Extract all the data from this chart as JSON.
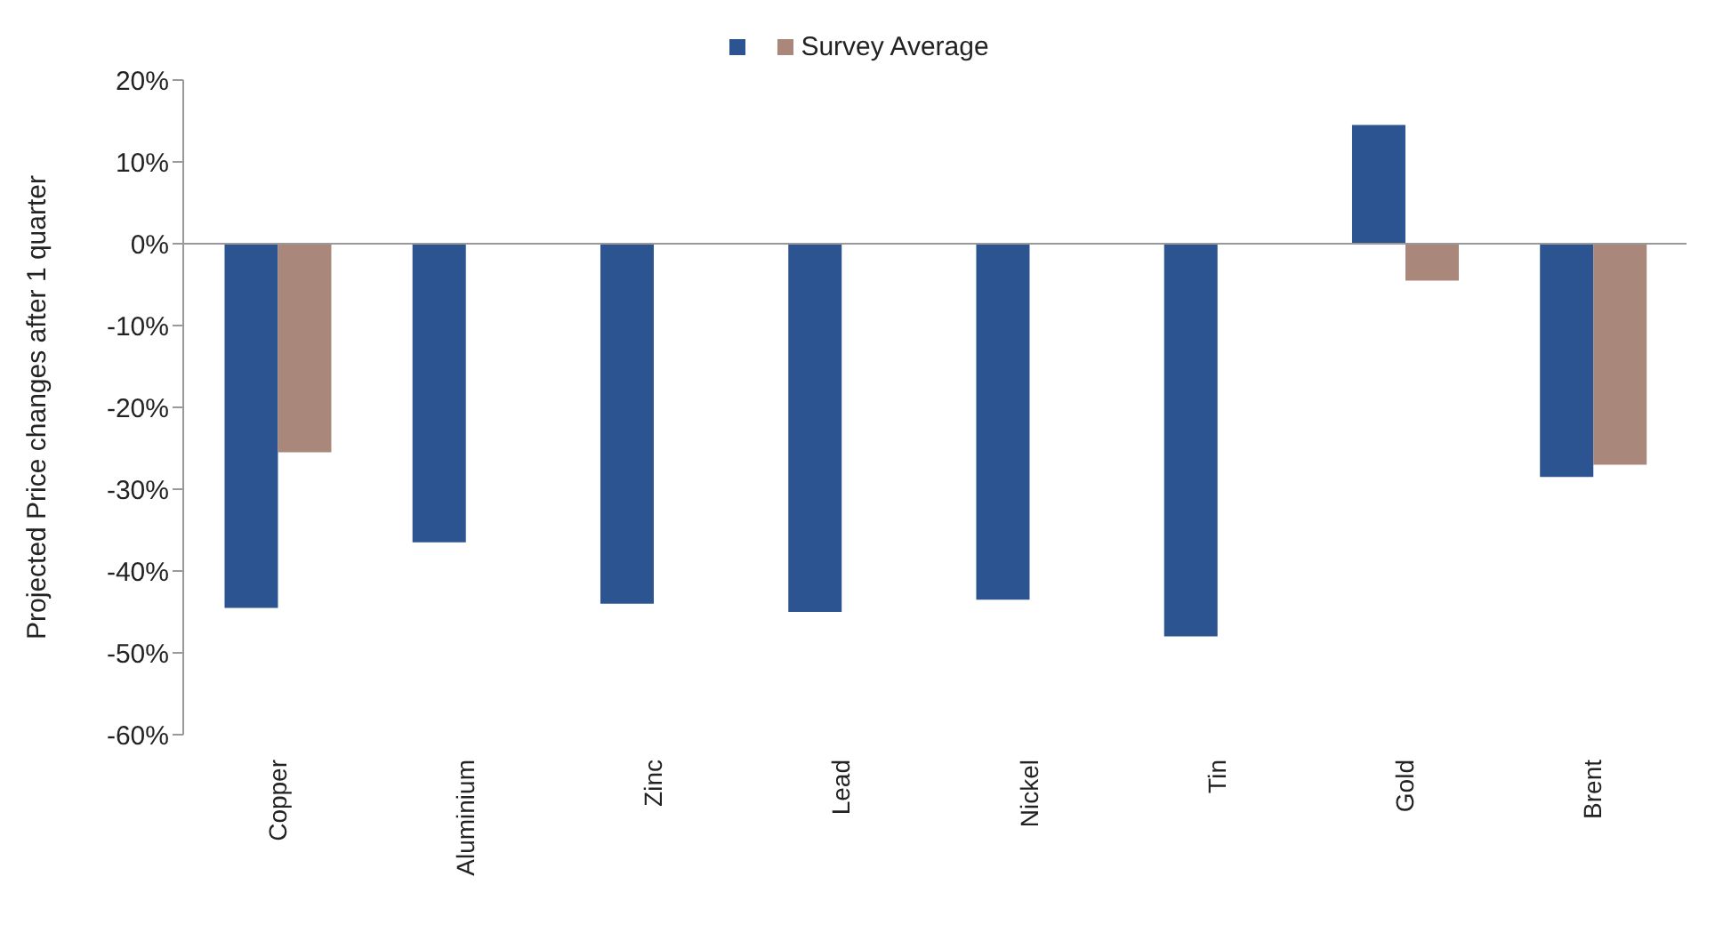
{
  "chart_data": {
    "type": "bar",
    "ylabel": "Projected Price changes after 1 quarter",
    "categories": [
      "Copper",
      "Aluminium",
      "Zinc",
      "Lead",
      "Nickel",
      "Tin",
      "Gold",
      "Brent"
    ],
    "series": [
      {
        "color": "#2b5490",
        "values": [
          -44.5,
          -36.5,
          -44,
          -45,
          -43.5,
          -48,
          14.5,
          -28.5
        ]
      },
      {
        "name": "Survey Average",
        "color": "#a9877a",
        "values": [
          -25.5,
          null,
          null,
          null,
          null,
          null,
          -4.5,
          -27
        ]
      }
    ],
    "ylim": [
      -60,
      20
    ],
    "yticks": [
      {
        "value": -60,
        "label": "-60%"
      },
      {
        "value": -50,
        "label": "-50%"
      },
      {
        "value": -40,
        "label": "-40%"
      },
      {
        "value": -30,
        "label": "-30%"
      },
      {
        "value": -20,
        "label": "-20%"
      },
      {
        "value": -10,
        "label": "-10%"
      },
      {
        "value": 0,
        "label": "0%"
      },
      {
        "value": 10,
        "label": "10%"
      },
      {
        "value": 20,
        "label": "20%"
      }
    ],
    "legend": "top"
  }
}
